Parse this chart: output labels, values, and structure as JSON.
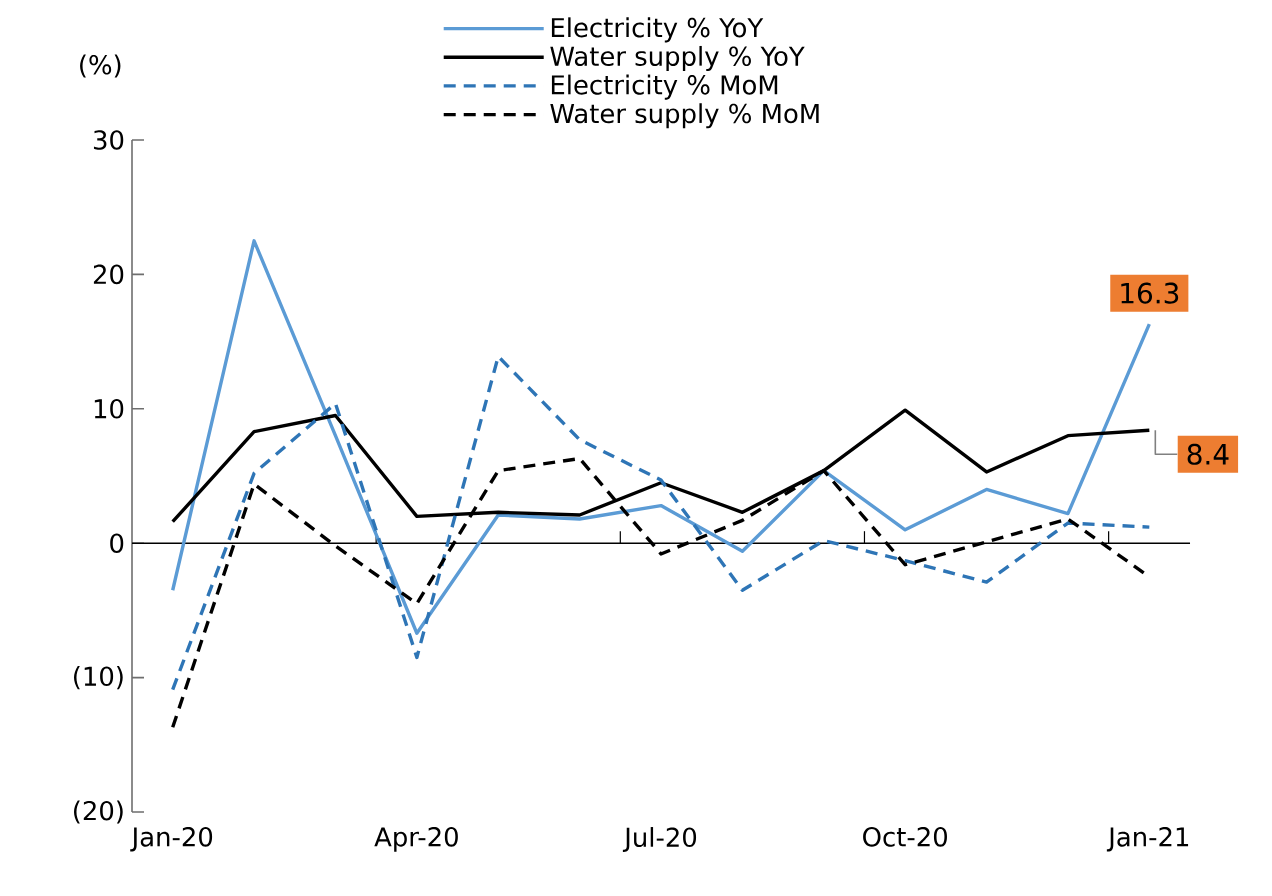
{
  "chart_data": {
    "type": "line",
    "categories": [
      "Jan-20",
      null,
      null,
      "Apr-20",
      null,
      null,
      "Jul-20",
      null,
      null,
      "Oct-20",
      null,
      null,
      "Jan-21"
    ],
    "series": [
      {
        "name": "Electricity % YoY",
        "color": "#5b9bd5",
        "line_style": "solid",
        "values": [
          -3.5,
          22.5,
          8,
          -6.7,
          2.1,
          1.8,
          2.8,
          -0.6,
          5.4,
          1.0,
          4.0,
          2.2,
          16.3
        ],
        "value_labels": [
          null,
          null,
          null,
          null,
          null,
          null,
          null,
          null,
          null,
          null,
          null,
          null,
          "16.3"
        ]
      },
      {
        "name": "Water supply % YoY",
        "color": "#000000",
        "line_style": "solid",
        "values": [
          1.6,
          8.3,
          9.5,
          2.0,
          2.3,
          2.1,
          4.5,
          2.3,
          5.4,
          9.9,
          5.3,
          8.0,
          8.4
        ],
        "value_labels": [
          null,
          null,
          null,
          null,
          null,
          null,
          null,
          null,
          null,
          null,
          null,
          null,
          "8.4"
        ]
      },
      {
        "name": "Electricity % MoM",
        "color": "#2e75b6",
        "line_style": "dashed",
        "values": [
          -10.9,
          5.2,
          10.4,
          -8.5,
          13.9,
          7.7,
          4.7,
          -3.5,
          0.2,
          -1.3,
          -2.9,
          1.5,
          1.2
        ]
      },
      {
        "name": "Water supply % MoM",
        "color": "#000000",
        "line_style": "dashed",
        "values": [
          -13.7,
          4.4,
          -0.2,
          -4.5,
          5.4,
          6.3,
          -0.8,
          1.7,
          5.4,
          -1.6,
          0.1,
          1.8,
          -2.5
        ]
      }
    ],
    "ylabel": "(%)",
    "ylim": [
      -20,
      30
    ],
    "yticks": [
      {
        "value": -20,
        "label": "(20)"
      },
      {
        "value": -10,
        "label": "(10)"
      },
      0,
      10,
      20,
      30
    ],
    "ref_lines": [
      {
        "axis": "y",
        "value": 0,
        "color": "#000000"
      }
    ],
    "legend": "top",
    "grid": false,
    "marker": "none"
  }
}
